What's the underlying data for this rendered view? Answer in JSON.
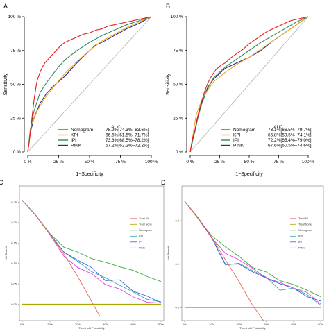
{
  "colors": {
    "Nomogram": "#e41a1c",
    "KPI": "#f5a623",
    "IPI": "#2e8b57",
    "PINK": "#1f2f8f",
    "diag": "#b0b0b0",
    "TreatAll": "#e8655a",
    "TreatNone": "#a8a800",
    "dNomogram": "#3aa83a",
    "dKPI": "#28a8a8",
    "dIPI": "#3a5fd8",
    "dPINK": "#e040e0"
  },
  "chart_data": [
    {
      "panel": "A",
      "type": "line",
      "xlabel": "1−Specificity",
      "ylabel": "Sensitivity",
      "xticks": [
        "0 %",
        "25 %",
        "50 %",
        "75 %",
        "100 %"
      ],
      "yticks": [
        "0 %",
        "25 %",
        "50 %",
        "75 %",
        "100 %"
      ],
      "xlim": [
        0,
        100
      ],
      "ylim": [
        0,
        100
      ],
      "legend_header": "AUC",
      "legend_position": "bottom-right",
      "series": [
        {
          "name": "Nomogram",
          "auc": "78.9%[74.3%–83.6%]",
          "x": [
            0,
            1,
            2,
            3,
            4,
            5,
            6,
            7,
            8,
            10,
            12,
            14,
            16,
            18,
            20,
            23,
            26,
            30,
            35,
            40,
            45,
            50,
            55,
            60,
            65,
            70,
            75,
            80,
            85,
            90,
            95,
            100
          ],
          "y": [
            0,
            6,
            14,
            22,
            30,
            38,
            44,
            50,
            54,
            59,
            63,
            66,
            68,
            70,
            72,
            75,
            78,
            81,
            83,
            85,
            87,
            88,
            90,
            91,
            93,
            94,
            95,
            96,
            97,
            98,
            99,
            100
          ]
        },
        {
          "name": "KPI",
          "auc": "66.6%[61.5%–71.7%]",
          "x": [
            0,
            3,
            8,
            14,
            20,
            30,
            40,
            50,
            60,
            70,
            80,
            90,
            100
          ],
          "y": [
            0,
            20,
            31,
            40,
            47,
            58,
            67,
            75,
            82,
            87,
            92,
            96,
            100
          ]
        },
        {
          "name": "IPI",
          "auc": "73.3%[68.5%–78.2%]",
          "x": [
            0,
            2,
            5,
            10,
            15,
            20,
            25,
            30,
            40,
            50,
            60,
            70,
            80,
            90,
            100
          ],
          "y": [
            0,
            16,
            30,
            44,
            51,
            57,
            63,
            68,
            75,
            81,
            86,
            90,
            94,
            97,
            100
          ]
        },
        {
          "name": "PINK",
          "auc": "67.2%[62.2%–72.2%]",
          "x": [
            0,
            2,
            5,
            10,
            15,
            20,
            25,
            30,
            40,
            50,
            55,
            60,
            70,
            80,
            90,
            100
          ],
          "y": [
            0,
            14,
            25,
            36,
            43,
            48,
            52,
            56,
            66,
            75,
            79,
            81,
            86,
            91,
            95,
            100
          ]
        }
      ]
    },
    {
      "panel": "B",
      "type": "line",
      "xlabel": "1−Specificity",
      "ylabel": "Sensitivity",
      "xticks": [
        "0 %",
        "25 %",
        "50 %",
        "75 %",
        "100 %"
      ],
      "yticks": [
        "0 %",
        "25 %",
        "50 %",
        "75 %",
        "100 %"
      ],
      "xlim": [
        0,
        100
      ],
      "ylim": [
        0,
        100
      ],
      "legend_header": "AUC",
      "legend_position": "bottom-right",
      "series": [
        {
          "name": "Nomogram",
          "auc": "73.1%[66.5%–79.7%]",
          "x": [
            0,
            2,
            4,
            6,
            8,
            10,
            12,
            15,
            18,
            22,
            26,
            30,
            35,
            40,
            45,
            50,
            55,
            60,
            65,
            70,
            75,
            80,
            85,
            90,
            95,
            100
          ],
          "y": [
            0,
            10,
            16,
            25,
            32,
            38,
            44,
            51,
            56,
            61,
            64,
            66,
            70,
            73,
            76,
            80,
            83,
            86,
            89,
            91,
            93,
            95,
            97,
            98,
            99,
            100
          ]
        },
        {
          "name": "KPI",
          "auc": "66.8%[59.5%–74.1%]",
          "x": [
            0,
            5,
            10,
            15,
            20,
            30,
            40,
            50,
            60,
            70,
            80,
            90,
            100
          ],
          "y": [
            0,
            27,
            39,
            46,
            52,
            59,
            65,
            70,
            76,
            82,
            88,
            94,
            100
          ]
        },
        {
          "name": "IPI",
          "auc": "72.2%[65.4%–79.0%]",
          "x": [
            0,
            2,
            4,
            6,
            8,
            10,
            13,
            16,
            20,
            25,
            30,
            35,
            40,
            50,
            60,
            70,
            80,
            90,
            100
          ],
          "y": [
            0,
            8,
            15,
            23,
            30,
            36,
            43,
            49,
            55,
            59,
            63,
            66,
            69,
            75,
            81,
            86,
            91,
            96,
            100
          ]
        },
        {
          "name": "PINK",
          "auc": "67.6%[60.5%–74.6%]",
          "x": [
            0,
            3,
            6,
            9,
            12,
            15,
            20,
            25,
            30,
            40,
            50,
            60,
            70,
            80,
            90,
            100
          ],
          "y": [
            0,
            12,
            24,
            34,
            42,
            48,
            54,
            58,
            62,
            66,
            70,
            75,
            82,
            88,
            94,
            100
          ]
        }
      ]
    },
    {
      "panel": "C",
      "type": "line",
      "xlabel": "Threshold Probability",
      "ylabel": "Net Benefit",
      "xticks": [
        "0%",
        "10%",
        "20%",
        "30%",
        "40%",
        "50%"
      ],
      "yticks": [
        "0.00",
        "0.05",
        "0.10",
        "0.15",
        "0.20",
        "0.25"
      ],
      "xlim": [
        -0.01,
        0.51
      ],
      "ylim": [
        -0.04,
        0.29
      ],
      "legend_position": "top-right",
      "series": [
        {
          "name": "Treat All",
          "x": [
            0,
            0.05,
            0.1,
            0.15,
            0.2,
            0.25,
            0.28
          ],
          "y": [
            0.255,
            0.217,
            0.172,
            0.123,
            0.068,
            0.007,
            -0.03
          ]
        },
        {
          "name": "Treat None",
          "x": [
            0,
            0.5
          ],
          "y": [
            0,
            0
          ]
        },
        {
          "name": "Nomogram",
          "x": [
            0,
            0.05,
            0.1,
            0.15,
            0.2,
            0.25,
            0.3,
            0.35,
            0.4,
            0.45,
            0.5
          ],
          "y": [
            0.255,
            0.217,
            0.173,
            0.14,
            0.128,
            0.112,
            0.103,
            0.092,
            0.083,
            0.068,
            0.056
          ]
        },
        {
          "name": "KPI",
          "x": [
            0,
            0.05,
            0.1,
            0.15,
            0.2,
            0.25,
            0.3,
            0.35,
            0.4,
            0.45,
            0.5
          ],
          "y": [
            0.255,
            0.217,
            0.172,
            0.128,
            0.105,
            0.08,
            0.065,
            0.047,
            0.03,
            0.012,
            0.006
          ]
        },
        {
          "name": "IPI",
          "x": [
            0,
            0.05,
            0.1,
            0.15,
            0.2,
            0.25,
            0.3,
            0.35,
            0.4,
            0.45,
            0.5
          ],
          "y": [
            0.255,
            0.217,
            0.172,
            0.128,
            0.108,
            0.09,
            0.058,
            0.06,
            0.032,
            0.02,
            0.004
          ]
        },
        {
          "name": "PINK",
          "x": [
            0,
            0.05,
            0.1,
            0.15,
            0.2,
            0.25,
            0.3,
            0.35,
            0.4,
            0.45,
            0.5
          ],
          "y": [
            0.255,
            0.217,
            0.17,
            0.118,
            0.09,
            0.075,
            0.048,
            0.038,
            0.018,
            0.005,
            0.003
          ]
        }
      ]
    },
    {
      "panel": "D",
      "type": "line",
      "xlabel": "Threshold Probability",
      "ylabel": "Net Benefit",
      "xticks": [
        "0%",
        "10%",
        "20%",
        "30%",
        "40%",
        "50%"
      ],
      "yticks": [
        "0.0",
        "0.1",
        "0.2"
      ],
      "xlim": [
        -0.01,
        0.51
      ],
      "ylim": [
        -0.03,
        0.28
      ],
      "legend_position": "top-right",
      "series": [
        {
          "name": "Treat All",
          "x": [
            0,
            0.05,
            0.1,
            0.15,
            0.2,
            0.25,
            0.29
          ],
          "y": [
            0.245,
            0.207,
            0.162,
            0.11,
            0.06,
            0.005,
            -0.03
          ]
        },
        {
          "name": "Treat None",
          "x": [
            0,
            0.5
          ],
          "y": [
            0,
            0
          ]
        },
        {
          "name": "Nomogram",
          "x": [
            0,
            0.05,
            0.1,
            0.15,
            0.2,
            0.25,
            0.3,
            0.35,
            0.4,
            0.45,
            0.5
          ],
          "y": [
            0.245,
            0.205,
            0.165,
            0.14,
            0.118,
            0.092,
            0.082,
            0.062,
            0.053,
            0.04,
            0.025
          ]
        },
        {
          "name": "KPI",
          "x": [
            0,
            0.05,
            0.1,
            0.15,
            0.2,
            0.25,
            0.3,
            0.35,
            0.4,
            0.45,
            0.5
          ],
          "y": [
            0.245,
            0.205,
            0.16,
            0.098,
            0.102,
            0.085,
            0.07,
            0.04,
            0.045,
            0.03,
            0.005
          ]
        },
        {
          "name": "IPI",
          "x": [
            0,
            0.05,
            0.1,
            0.15,
            0.2,
            0.25,
            0.3,
            0.35,
            0.4,
            0.45,
            0.5
          ],
          "y": [
            0.245,
            0.205,
            0.16,
            0.1,
            0.1,
            0.082,
            0.068,
            0.055,
            0.045,
            0.025,
            0.015
          ]
        },
        {
          "name": "PINK",
          "x": [
            0,
            0.05,
            0.1,
            0.15,
            0.2,
            0.25,
            0.3,
            0.35,
            0.4,
            0.45,
            0.5
          ],
          "y": [
            0.245,
            0.205,
            0.16,
            0.125,
            0.11,
            0.09,
            0.068,
            0.058,
            0.045,
            0.035,
            0.008
          ]
        }
      ]
    }
  ]
}
